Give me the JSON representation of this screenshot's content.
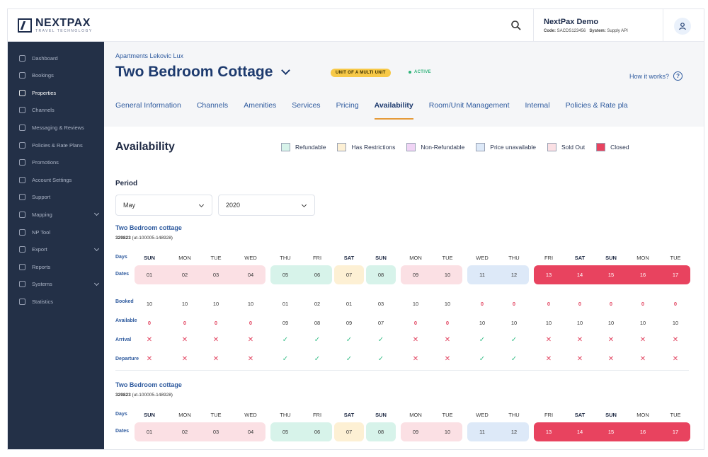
{
  "topbar": {
    "logo_name": "NEXTPAX",
    "logo_tagline": "TRAVEL TECHNOLOGY",
    "user_name": "NextPax Demo",
    "code_label": "Code:",
    "code_value": "SACDS123456",
    "system_label": "System:",
    "system_value": "Supply API"
  },
  "sidebar": {
    "items": [
      {
        "label": "Dashboard",
        "icon": "dashboard-icon"
      },
      {
        "label": "Bookings",
        "icon": "bookings-icon"
      },
      {
        "label": "Properties",
        "icon": "properties-icon",
        "active": true
      },
      {
        "label": "Channels",
        "icon": "channels-icon"
      },
      {
        "label": "Messaging & Reviews",
        "icon": "messaging-icon"
      },
      {
        "label": "Policies & Rate Plans",
        "icon": "policies-icon"
      },
      {
        "label": "Promotions",
        "icon": "promotions-icon"
      },
      {
        "label": "Account Settings",
        "icon": "settings-icon"
      },
      {
        "label": "Support",
        "icon": "support-icon"
      },
      {
        "label": "Mapping",
        "icon": "mapping-icon",
        "expandable": true
      },
      {
        "label": "NP Tool",
        "icon": "tool-icon"
      },
      {
        "label": "Export",
        "icon": "export-icon",
        "expandable": true
      },
      {
        "label": "Reports",
        "icon": "reports-icon"
      },
      {
        "label": "Systems",
        "icon": "systems-icon",
        "expandable": true
      },
      {
        "label": "Statistics",
        "icon": "statistics-icon"
      }
    ]
  },
  "header": {
    "breadcrumb": "Apartments Lekovic Lux",
    "title": "Two Bedroom Cottage",
    "unit_badge": "UNIT OF A MULTI UNIT",
    "status": "ACTIVE",
    "help_link": "How it works?",
    "tabs": [
      {
        "label": "General Information"
      },
      {
        "label": "Channels"
      },
      {
        "label": "Amenities"
      },
      {
        "label": "Services"
      },
      {
        "label": "Pricing"
      },
      {
        "label": "Availability",
        "active": true
      },
      {
        "label": "Room/Unit Management"
      },
      {
        "label": "Internal"
      },
      {
        "label": "Policies & Rate pla"
      }
    ]
  },
  "availability": {
    "title": "Availability",
    "legend": [
      {
        "label": "Refundable",
        "color": "#d7f3ea"
      },
      {
        "label": "Has Restrictions",
        "color": "#fdf0d4"
      },
      {
        "label": "Non-Refundable",
        "color": "#f0d4f5"
      },
      {
        "label": "Price unavailable",
        "color": "#dde9f8"
      },
      {
        "label": "Sold Out",
        "color": "#fbe0e4"
      },
      {
        "label": "Closed",
        "color": "#e8435f"
      }
    ],
    "period_label": "Period",
    "month": "May",
    "year": "2020",
    "row_labels": {
      "days": "Days",
      "dates": "Dates",
      "booked": "Booked",
      "available": "Available",
      "arrival": "Arrival",
      "departure": "Departure"
    },
    "days": [
      "SUN",
      "MON",
      "TUE",
      "WED",
      "THU",
      "FRI",
      "SAT",
      "SUN",
      "MON",
      "TUE",
      "WED",
      "THU",
      "FRI",
      "SAT",
      "SUN",
      "MON",
      "TUE"
    ],
    "dates": [
      "01",
      "02",
      "03",
      "04",
      "05",
      "06",
      "07",
      "08",
      "09",
      "10",
      "11",
      "12",
      "13",
      "14",
      "15",
      "16",
      "17"
    ],
    "booked": [
      "10",
      "10",
      "10",
      "10",
      "01",
      "02",
      "01",
      "03",
      "10",
      "10",
      "0",
      "0",
      "0",
      "0",
      "0",
      "0",
      "0"
    ],
    "available": [
      "0",
      "0",
      "0",
      "0",
      "09",
      "08",
      "09",
      "07",
      "0",
      "0",
      "10",
      "10",
      "10",
      "10",
      "10",
      "10",
      "10"
    ],
    "arrival": [
      "x",
      "x",
      "x",
      "x",
      "ok",
      "ok",
      "ok",
      "ok",
      "x",
      "x",
      "ok",
      "ok",
      "x",
      "x",
      "x",
      "x",
      "x"
    ],
    "departure": [
      "x",
      "x",
      "x",
      "x",
      "ok",
      "ok",
      "ok",
      "ok",
      "x",
      "x",
      "ok",
      "ok",
      "x",
      "x",
      "x",
      "x",
      "x"
    ],
    "units": [
      {
        "name": "Two Bedroom cottage",
        "code": "329823",
        "ref": "(ut-100005-148928)"
      },
      {
        "name": "Two Bedroom cottage",
        "code": "329823",
        "ref": "(ut-100005-148928)"
      }
    ]
  }
}
